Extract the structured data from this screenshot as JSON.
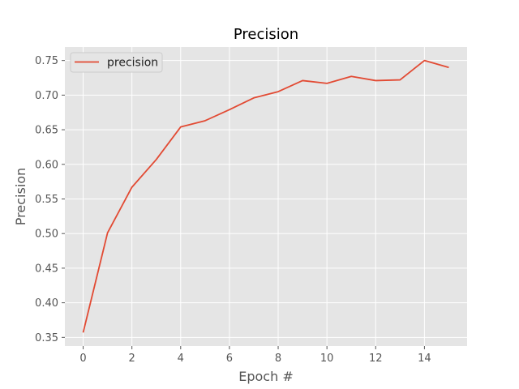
{
  "chart_data": {
    "type": "line",
    "title": "Precision",
    "xlabel": "Epoch #",
    "ylabel": "Precision",
    "xlim": [
      -0.75,
      15.75
    ],
    "ylim": [
      0.3375,
      0.7695
    ],
    "xticks": [
      0,
      2,
      4,
      6,
      8,
      10,
      12,
      14
    ],
    "yticks": [
      0.35,
      0.4,
      0.45,
      0.5,
      0.55,
      0.6,
      0.65,
      0.7,
      0.75
    ],
    "xtick_labels": [
      "0",
      "2",
      "4",
      "6",
      "8",
      "10",
      "12",
      "14"
    ],
    "ytick_labels": [
      "0.35",
      "0.40",
      "0.45",
      "0.50",
      "0.55",
      "0.60",
      "0.65",
      "0.70",
      "0.75"
    ],
    "grid": true,
    "legend_position": "top-left",
    "background": "#e5e5e5",
    "series": [
      {
        "name": "precision",
        "color": "#e24a33",
        "x": [
          0,
          1,
          2,
          3,
          4,
          5,
          6,
          7,
          8,
          9,
          10,
          11,
          12,
          13,
          14,
          15
        ],
        "values": [
          0.357,
          0.501,
          0.567,
          0.607,
          0.654,
          0.663,
          0.679,
          0.696,
          0.705,
          0.721,
          0.717,
          0.727,
          0.721,
          0.722,
          0.75,
          0.74
        ]
      }
    ]
  }
}
